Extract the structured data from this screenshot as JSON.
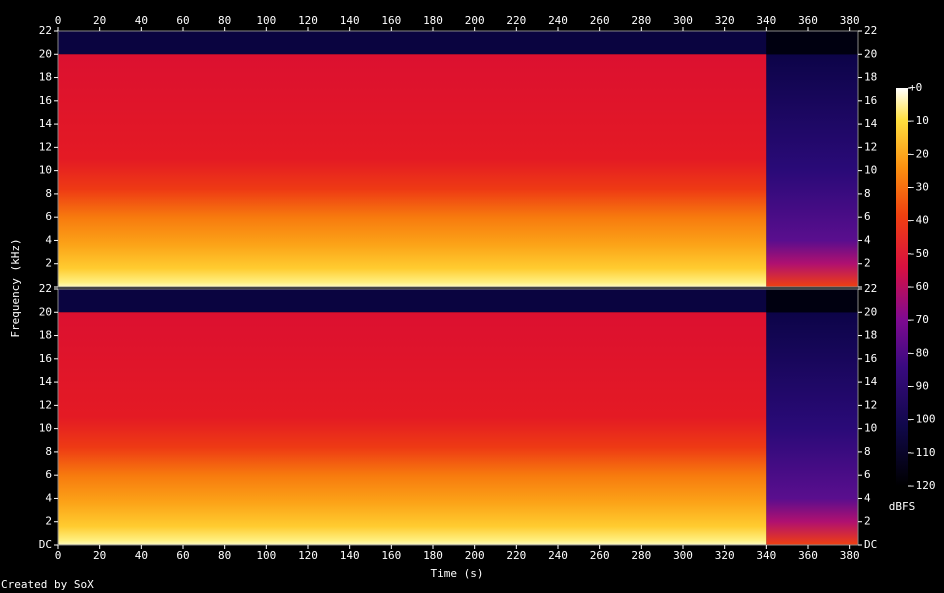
{
  "chart_data": {
    "type": "spectrogram",
    "x_label": "Time (s)",
    "y_label": "Frequency (kHz)",
    "footer": "Created by SoX",
    "xlim": [
      0,
      384
    ],
    "xticks": [
      0,
      20,
      40,
      60,
      80,
      100,
      120,
      140,
      160,
      180,
      200,
      220,
      240,
      260,
      280,
      300,
      320,
      340,
      360,
      380
    ],
    "ylim": [
      0,
      22
    ],
    "yticks": [
      {
        "value": 0,
        "label": "DC"
      },
      2,
      4,
      6,
      8,
      10,
      12,
      14,
      16,
      18,
      20,
      22
    ],
    "colorbar": {
      "label": "dBFS",
      "lim": [
        -120,
        0
      ],
      "ticks": [
        {
          "value": 0,
          "label": "+0"
        },
        -10,
        -20,
        -30,
        -40,
        -50,
        -60,
        -70,
        -80,
        -90,
        -100,
        -110,
        -120
      ]
    }
  }
}
